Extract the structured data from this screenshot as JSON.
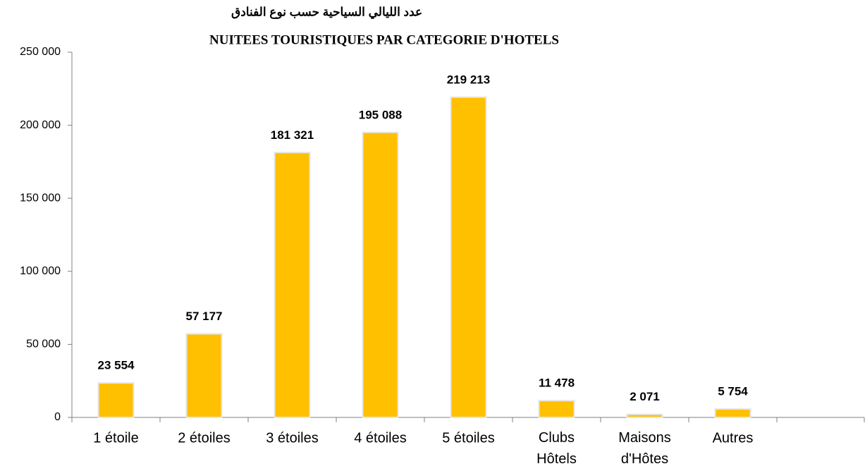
{
  "chart_data": {
    "type": "bar",
    "title": "عدد الليالي السياحية  حسب نوع الفنادق",
    "subtitle": "NUITEES TOURISTIQUES PAR CATEGORIE D'HOTELS",
    "categories": [
      "1 étoile",
      "2 étoiles",
      "3 étoiles",
      "4 étoiles",
      "5 étoiles",
      "Clubs\nHôtels",
      "Maisons\nd'Hôtes",
      "Autres",
      null
    ],
    "values": [
      23554,
      57177,
      181321,
      195088,
      219213,
      11478,
      2071,
      5754,
      null
    ],
    "value_labels": [
      "23 554",
      "57 177",
      "181 321",
      "195 088",
      "219 213",
      "11 478",
      "2 071",
      "5 754",
      null
    ],
    "color": "#FFC000",
    "ylim": [
      0,
      250000
    ],
    "yticks": [
      0,
      {
        "value": 50000,
        "label": "50 000"
      },
      {
        "value": 100000,
        "label": "100 000"
      },
      {
        "value": 150000,
        "label": "150 000"
      },
      {
        "value": 200000,
        "label": "200 000"
      },
      {
        "value": 250000,
        "label": "250 000"
      }
    ],
    "grid": false
  }
}
